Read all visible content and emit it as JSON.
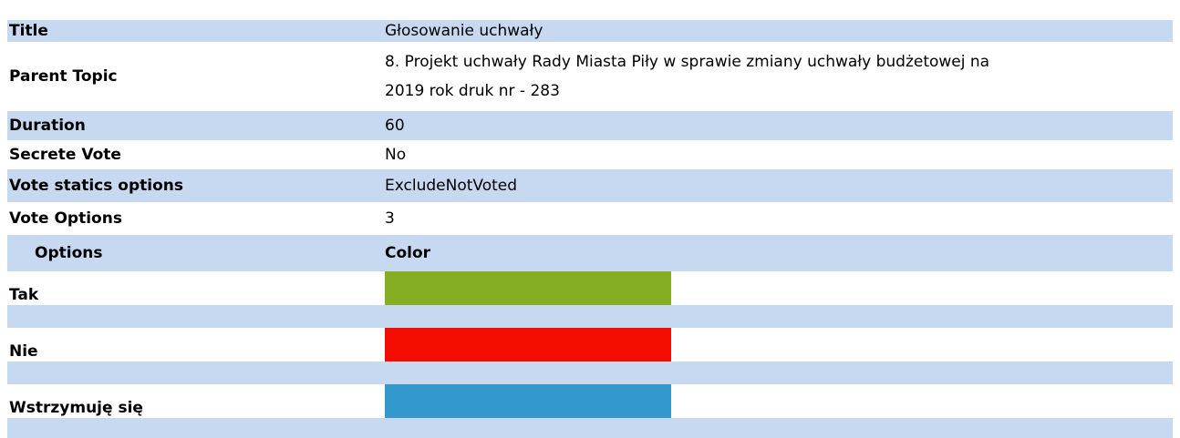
{
  "fields": [
    {
      "label": "Title",
      "value": "Głosowanie uchwały"
    },
    {
      "label": "Parent Topic",
      "value": "8. Projekt uchwały Rady Miasta Piły w sprawie zmiany uchwały budżetowej na 2019 rok druk nr - 283"
    },
    {
      "label": "Duration",
      "value": "60"
    },
    {
      "label": "Secrete Vote",
      "value": "No"
    },
    {
      "label": "Vote statics options",
      "value": "ExcludeNotVoted"
    },
    {
      "label": "Vote Options",
      "value": "3"
    }
  ],
  "options_header": {
    "name": "Options",
    "color": "Color"
  },
  "options": [
    {
      "name": "Tak",
      "color": "#86ae23"
    },
    {
      "name": "Nie",
      "color": "#f20d00"
    },
    {
      "name": "Wstrzymuję się",
      "color": "#3399cc"
    }
  ]
}
